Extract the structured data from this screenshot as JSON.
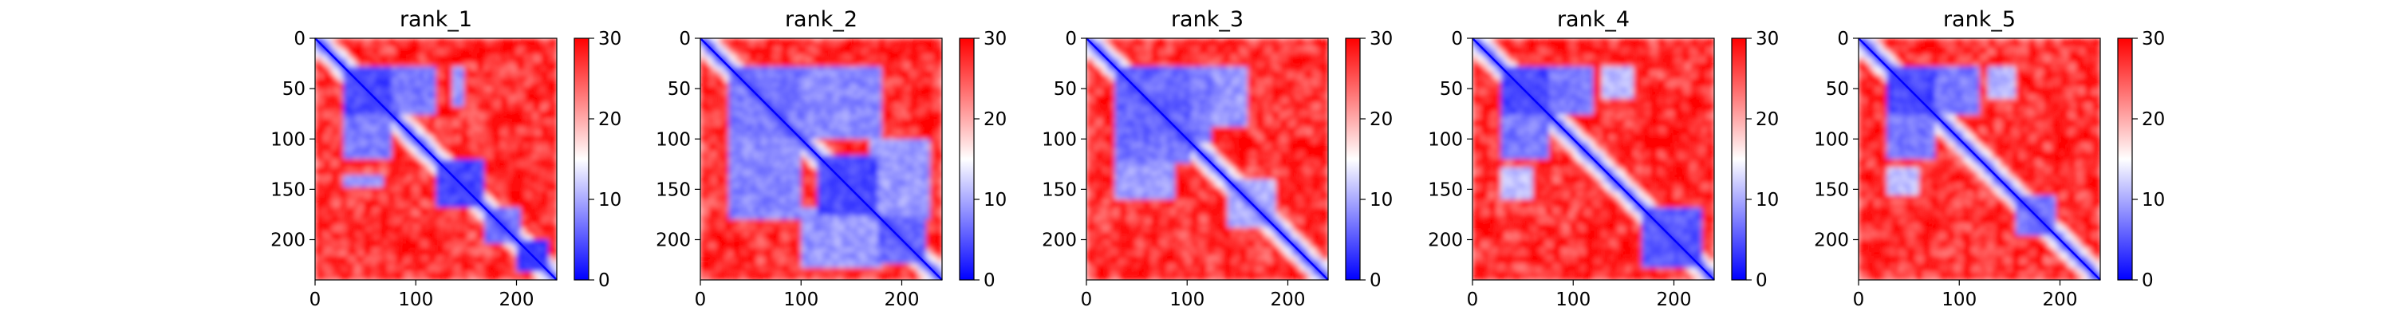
{
  "chart_data": {
    "type": "heatmap",
    "x_ticks": [
      0,
      100,
      200
    ],
    "y_ticks": [
      0,
      50,
      100,
      150,
      200
    ],
    "xlim": [
      0,
      240
    ],
    "ylim": [
      240,
      0
    ],
    "colorbar": {
      "ticks": [
        0,
        10,
        20,
        30
      ],
      "range": [
        0,
        30
      ],
      "colors": {
        "low": "#0000ff",
        "mid": "#ffffff",
        "high": "#ff0000"
      }
    },
    "panels": [
      {
        "title": "rank_1",
        "domains": [
          {
            "range": [
              30,
              75
            ],
            "value": 4
          },
          {
            "range": [
              120,
              170
            ],
            "value": 4
          },
          {
            "range": [
              200,
              232
            ],
            "value": 3
          }
        ],
        "contacts": [
          {
            "rows": [
              30,
              75
            ],
            "cols": [
              75,
              120
            ],
            "value": 7
          },
          {
            "rows": [
              95,
              110
            ],
            "cols": [
              30,
              70
            ],
            "value": 8
          },
          {
            "rows": [
              135,
              150
            ],
            "cols": [
              30,
              70
            ],
            "value": 9
          },
          {
            "rows": [
              170,
              205
            ],
            "cols": [
              170,
              205
            ],
            "value": 7
          }
        ]
      },
      {
        "title": "rank_2",
        "domains": [
          {
            "range": [
              30,
              100
            ],
            "value": 7
          },
          {
            "range": [
              115,
              175
            ],
            "value": 4
          },
          {
            "range": [
              175,
              225
            ],
            "value": 6
          }
        ],
        "contacts": [
          {
            "rows": [
              100,
              180
            ],
            "cols": [
              30,
              100
            ],
            "value": 8
          },
          {
            "rows": [
              100,
              180
            ],
            "cols": [
              170,
              230
            ],
            "value": 9
          },
          {
            "rows": [
              30,
              100
            ],
            "cols": [
              100,
              140
            ],
            "value": 9
          }
        ]
      },
      {
        "title": "rank_3",
        "domains": [
          {
            "range": [
              30,
              105
            ],
            "value": 6
          }
        ],
        "contacts": [
          {
            "rows": [
              30,
              105
            ],
            "cols": [
              105,
              125
            ],
            "value": 7
          },
          {
            "rows": [
              105,
              160
            ],
            "cols": [
              30,
              90
            ],
            "value": 9
          },
          {
            "rows": [
              140,
              190
            ],
            "cols": [
              140,
              190
            ],
            "value": 10
          }
        ]
      },
      {
        "title": "rank_4",
        "domains": [
          {
            "range": [
              30,
              75
            ],
            "value": 4
          },
          {
            "range": [
              170,
              230
            ],
            "value": 5
          }
        ],
        "contacts": [
          {
            "rows": [
              30,
              75
            ],
            "cols": [
              75,
              120
            ],
            "value": 7
          },
          {
            "rows": [
              85,
              110
            ],
            "cols": [
              30,
              70
            ],
            "value": 8
          },
          {
            "rows": [
              130,
              160
            ],
            "cols": [
              30,
              60
            ],
            "value": 11
          }
        ]
      },
      {
        "title": "rank_5",
        "domains": [
          {
            "range": [
              30,
              75
            ],
            "value": 4
          },
          {
            "range": [
              155,
              195
            ],
            "value": 7
          }
        ],
        "contacts": [
          {
            "rows": [
              30,
              75
            ],
            "cols": [
              75,
              120
            ],
            "value": 7
          },
          {
            "rows": [
              85,
              110
            ],
            "cols": [
              30,
              70
            ],
            "value": 8
          },
          {
            "rows": [
              130,
              155
            ],
            "cols": [
              30,
              60
            ],
            "value": 11
          }
        ]
      }
    ]
  }
}
